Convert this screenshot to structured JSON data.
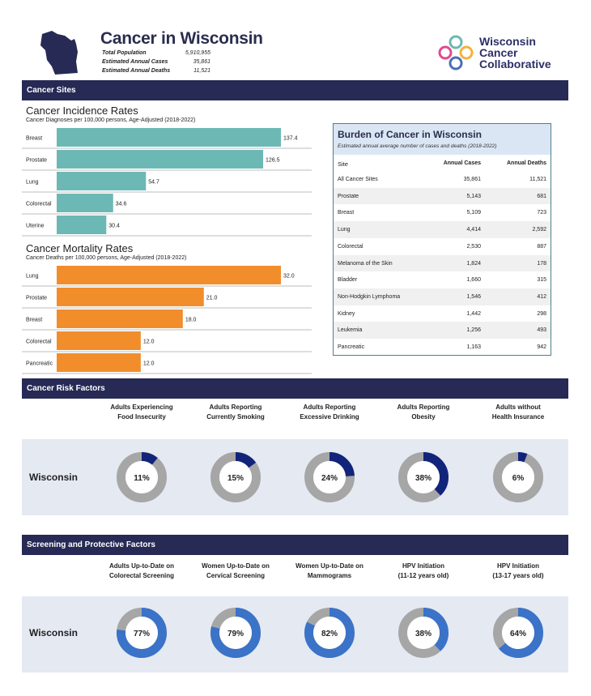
{
  "header": {
    "title": "Cancer in Wisconsin",
    "stats": [
      {
        "label": "Total Population",
        "value": "5,910,955"
      },
      {
        "label": "Estimated Annual Cases",
        "value": "35,861"
      },
      {
        "label": "Estimated Annual Deaths",
        "value": "11,521"
      }
    ],
    "logo_lines": [
      "Wisconsin",
      "Cancer",
      "Collaborative"
    ],
    "colors": {
      "navy": "#272a55",
      "teal": "#6cb8b5",
      "orange": "#f28d2c",
      "donut_dark": "#12247a",
      "donut_blue": "#3a73c8",
      "donut_gray": "#a6a6a6"
    }
  },
  "sections": {
    "sites": "Cancer Sites",
    "risk": "Cancer Risk Factors",
    "screening": "Screening and Protective Factors"
  },
  "chart_data": [
    {
      "type": "bar",
      "orientation": "horizontal",
      "title": "Cancer Incidence Rates",
      "subtitle": "Cancer Diagnoses per 100,000 persons, Age-Adjusted (2018-2022)",
      "categories": [
        "Breast",
        "Prostate",
        "Lung",
        "Colorectal",
        "Uterine"
      ],
      "values": [
        137.4,
        126.5,
        54.7,
        34.6,
        30.4
      ],
      "labels": [
        "137.4",
        "126.5",
        "54.7",
        "34.6",
        "30.4"
      ],
      "xlim": [
        0,
        137.4
      ],
      "color": "#6cb8b5"
    },
    {
      "type": "bar",
      "orientation": "horizontal",
      "title": "Cancer Mortality Rates",
      "subtitle": "Cancer Deaths per 100,000 persons, Age-Adjusted (2018-2022)",
      "categories": [
        "Lung",
        "Prostate",
        "Breast",
        "Colorectal",
        "Pancreatic"
      ],
      "values": [
        32.0,
        21.0,
        18.0,
        12.0,
        12.0
      ],
      "labels": [
        "32.0",
        "21.0",
        "18.0",
        "12.0",
        "12.0"
      ],
      "xlim": [
        0,
        32.0
      ],
      "color": "#f28d2c"
    },
    {
      "type": "table",
      "title": "Burden of Cancer in Wisconsin",
      "subtitle": "Estimated annual average number of cases and deaths (2018-2022)",
      "columns": [
        "Site",
        "Annual Cases",
        "Annual Deaths"
      ],
      "rows": [
        [
          "All Cancer Sites",
          "35,861",
          "11,521"
        ],
        [
          "Prostate",
          "5,143",
          "681"
        ],
        [
          "Breast",
          "5,109",
          "723"
        ],
        [
          "Lung",
          "4,414",
          "2,592"
        ],
        [
          "Colorectal",
          "2,530",
          "887"
        ],
        [
          "Melanoma of the Skin",
          "1,824",
          "178"
        ],
        [
          "Bladder",
          "1,660",
          "315"
        ],
        [
          "Non-Hodgkin Lymphoma",
          "1,546",
          "412"
        ],
        [
          "Kidney",
          "1,442",
          "298"
        ],
        [
          "Leukemia",
          "1,256",
          "493"
        ],
        [
          "Pancreatic",
          "1,163",
          "942"
        ]
      ]
    },
    {
      "type": "pie",
      "variant": "donut",
      "group": "risk",
      "state": "Wisconsin",
      "categories": [
        "Adults Experiencing Food Insecurity",
        "Adults Reporting Currently Smoking",
        "Adults Reporting Excessive Drinking",
        "Adults Reporting Obesity",
        "Adults without Health Insurance"
      ],
      "headers": [
        [
          "Adults Experiencing",
          "Food Insecurity"
        ],
        [
          "Adults Reporting",
          "Currently Smoking"
        ],
        [
          "Adults Reporting",
          "Excessive Drinking"
        ],
        [
          "Adults Reporting",
          "Obesity"
        ],
        [
          "Adults without",
          "Health Insurance"
        ]
      ],
      "values": [
        11,
        15,
        24,
        38,
        6
      ],
      "labels": [
        "11%",
        "15%",
        "24%",
        "38%",
        "6%"
      ],
      "color": "#12247a"
    },
    {
      "type": "pie",
      "variant": "donut",
      "group": "screening",
      "state": "Wisconsin",
      "categories": [
        "Adults Up-to-Date on Colorectal Screening",
        "Women Up-to-Date on Cervical Screening",
        "Women Up-to-Date on Mammograms",
        "HPV Initiation (11-12 years old)",
        "HPV Initiation (13-17 years old)"
      ],
      "headers": [
        [
          "Adults Up-to-Date on",
          "Colorectal Screening"
        ],
        [
          "Women Up-to-Date on",
          "Cervical Screening"
        ],
        [
          "Women Up-to-Date on",
          "Mammograms"
        ],
        [
          "HPV Initiation",
          "(11-12 years old)"
        ],
        [
          "HPV Initiation",
          "(13-17 years old)"
        ]
      ],
      "values": [
        77,
        79,
        82,
        38,
        64
      ],
      "labels": [
        "77%",
        "79%",
        "82%",
        "38%",
        "64%"
      ],
      "color": "#3a73c8"
    }
  ]
}
